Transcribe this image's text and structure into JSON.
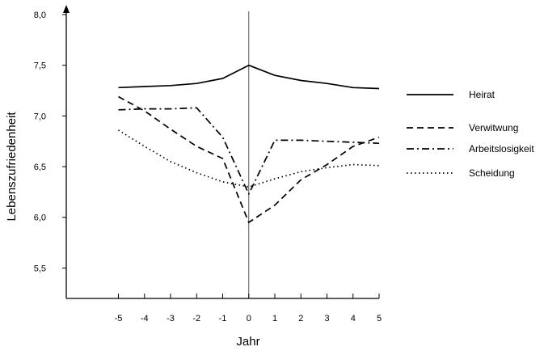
{
  "chart_data": {
    "type": "line",
    "xlabel": "Jahr",
    "ylabel": "Lebenszufriedenheit",
    "x": [
      -5,
      -4,
      -3,
      -2,
      -1,
      0,
      1,
      2,
      3,
      4,
      5
    ],
    "xlim": [
      -7,
      5
    ],
    "ylim": [
      5.2,
      8.0
    ],
    "y_ticks": [
      5.5,
      6.0,
      6.5,
      7.0,
      7.5,
      8.0
    ],
    "y_tick_labels": [
      "5,5",
      "6,0",
      "6,5",
      "7,0",
      "7,5",
      "8,0"
    ],
    "x_tick_labels": [
      "-5",
      "-4",
      "-3",
      "-2",
      "-1",
      "0",
      "1",
      "2",
      "3",
      "4",
      "5"
    ],
    "grid": false,
    "vertical_reference_line_x": 0,
    "legend_position": "right",
    "series": [
      {
        "name": "Heirat",
        "style": "solid",
        "values": [
          7.28,
          7.29,
          7.3,
          7.32,
          7.37,
          7.5,
          7.4,
          7.35,
          7.32,
          7.28,
          7.27
        ]
      },
      {
        "name": "Verwitwung",
        "style": "dashed",
        "values": [
          7.19,
          7.05,
          6.87,
          6.7,
          6.58,
          5.95,
          6.12,
          6.37,
          6.52,
          6.7,
          6.79
        ]
      },
      {
        "name": "Arbeitslosigkeit",
        "style": "dashdot",
        "values": [
          7.06,
          7.07,
          7.07,
          7.08,
          6.79,
          6.23,
          6.76,
          6.76,
          6.75,
          6.74,
          6.73
        ]
      },
      {
        "name": "Scheidung",
        "style": "dotted",
        "values": [
          6.86,
          6.7,
          6.55,
          6.44,
          6.35,
          6.3,
          6.38,
          6.45,
          6.49,
          6.52,
          6.51
        ]
      }
    ]
  }
}
